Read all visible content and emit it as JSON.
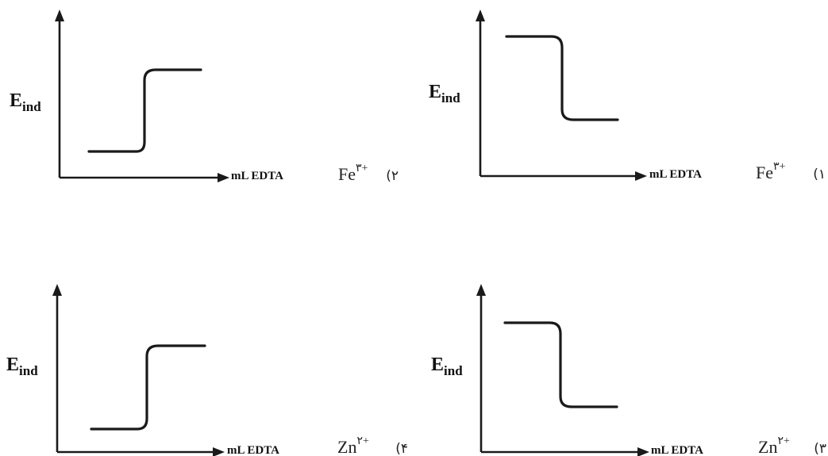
{
  "options": [
    {
      "number": "۲)",
      "ion_symbol": "Fe",
      "ion_charge": "۳+",
      "y_label_main": "E",
      "y_label_sub": "ind",
      "x_label": "mL EDTA",
      "curve_direction": "rising"
    },
    {
      "number": "۱)",
      "ion_symbol": "Fe",
      "ion_charge": "۳+",
      "y_label_main": "E",
      "y_label_sub": "ind",
      "x_label": "mL EDTA",
      "curve_direction": "falling"
    },
    {
      "number": "۴)",
      "ion_symbol": "Zn",
      "ion_charge": "۲+",
      "y_label_main": "E",
      "y_label_sub": "ind",
      "x_label": "mL EDTA",
      "curve_direction": "rising"
    },
    {
      "number": "۳)",
      "ion_symbol": "Zn",
      "ion_charge": "۲+",
      "y_label_main": "E",
      "y_label_sub": "ind",
      "x_label": "mL EDTA",
      "curve_direction": "falling"
    }
  ]
}
